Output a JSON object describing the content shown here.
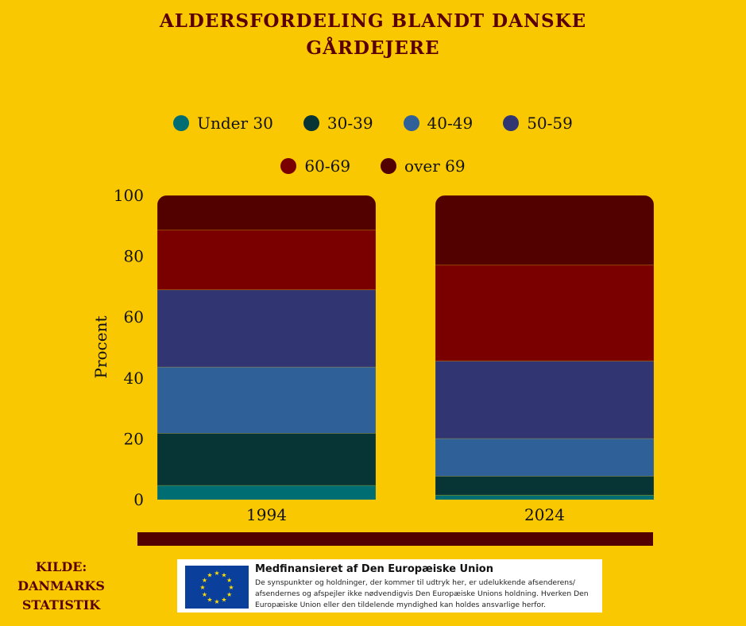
{
  "chart_data": {
    "type": "bar",
    "stacked": true,
    "title": "ALDERSFORDELING BLANDT DANSKE GÅRDEJERE",
    "ylabel": "Procent",
    "xlabel": "",
    "ylim": [
      0,
      100
    ],
    "yticks": [
      "0",
      "20",
      "40",
      "60",
      "80",
      "100"
    ],
    "grid": false,
    "legend_position": "top",
    "categories": [
      "1994",
      "2024"
    ],
    "series": [
      {
        "name": "Under 30",
        "color": "#006D72",
        "values": [
          4.7,
          1.5
        ]
      },
      {
        "name": "30-39",
        "color": "#073434",
        "values": [
          17.1,
          6.2
        ]
      },
      {
        "name": "40-49",
        "color": "#2F6098",
        "values": [
          21.8,
          12.4
        ]
      },
      {
        "name": "50-59",
        "color": "#313571",
        "values": [
          25.4,
          25.5
        ]
      },
      {
        "name": "60-69",
        "color": "#7A0000",
        "values": [
          19.6,
          31.5
        ]
      },
      {
        "name": "over 69",
        "color": "#530000",
        "values": [
          11.4,
          22.9
        ]
      }
    ]
  },
  "title_lines": [
    "ALDERSFORDELING BLANDT DANSKE",
    "GÅRDEJERE"
  ],
  "source": {
    "lines": [
      "KILDE:",
      "DANMARKS",
      "STATISTIK"
    ]
  },
  "eu_notice": {
    "title": "Medfinansieret af Den Europæiske Union",
    "text": "De synspunkter og holdninger, der kommer til udtryk her, er udelukkende afsenderens/ afsendernes og afspejler ikke nødvendigvis Den Europæiske Unions holdning. Hverken Den Europæiske Union eller den tildelende myndighed kan holdes ansvarlige herfor.",
    "flag_icon": "eu-flag"
  },
  "colors": {
    "background": "#FAC800",
    "title": "#5A0000",
    "footer_bar": "#530000"
  }
}
